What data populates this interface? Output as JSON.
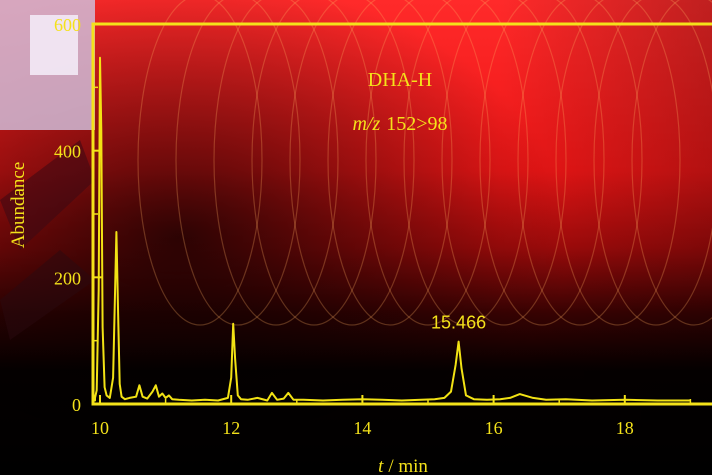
{
  "chart_data": {
    "type": "line",
    "title": "DHA-H",
    "subtitle": "m/z 152>98",
    "subtitle_prefix": "m/z",
    "subtitle_transition": "152>98",
    "xlabel_symbol": "t",
    "xlabel_unit": "/ min",
    "ylabel": "Abundance",
    "xlim": [
      9.0,
      19.0
    ],
    "ylim": [
      0,
      600
    ],
    "xticks": [
      10,
      12,
      14,
      16,
      18
    ],
    "yticks": [
      0,
      200,
      400,
      600
    ],
    "grid": false,
    "annotations": [
      {
        "text": "15.466",
        "x": 15.466,
        "y": 97
      }
    ],
    "series": [
      {
        "x": [
          9.0,
          9.1,
          9.2,
          9.3,
          9.4,
          9.5,
          9.6,
          9.7,
          9.8,
          9.9,
          9.95,
          9.98,
          10.0,
          10.02,
          10.04,
          10.07,
          10.1,
          10.15,
          10.2,
          10.25,
          10.28,
          10.3,
          10.33,
          10.38,
          10.45,
          10.55,
          10.6,
          10.65,
          10.72,
          10.8,
          10.85,
          10.9,
          10.95,
          11.0,
          11.05,
          11.1,
          11.2,
          11.4,
          11.6,
          11.8,
          11.95,
          12.0,
          12.03,
          12.06,
          12.1,
          12.15,
          12.25,
          12.4,
          12.55,
          12.62,
          12.7,
          12.8,
          12.87,
          12.95,
          13.1,
          13.4,
          13.7,
          14.0,
          14.3,
          14.6,
          14.9,
          15.1,
          15.25,
          15.35,
          15.42,
          15.466,
          15.51,
          15.58,
          15.7,
          15.9,
          16.1,
          16.25,
          16.4,
          16.6,
          16.8,
          17.1,
          17.5,
          18.0,
          18.5,
          19.0
        ],
        "y": [
          5,
          9,
          4,
          7,
          5,
          6,
          4,
          7,
          5,
          8,
          20,
          180,
          545,
          430,
          120,
          25,
          12,
          8,
          40,
          270,
          120,
          30,
          10,
          6,
          8,
          10,
          28,
          10,
          7,
          18,
          28,
          10,
          15,
          8,
          12,
          6,
          5,
          4,
          5,
          4,
          8,
          40,
          125,
          70,
          12,
          6,
          5,
          8,
          4,
          16,
          5,
          7,
          16,
          5,
          5,
          4,
          5,
          6,
          5,
          4,
          5,
          6,
          8,
          18,
          60,
          97,
          55,
          12,
          6,
          5,
          6,
          8,
          14,
          8,
          5,
          6,
          4,
          5,
          4,
          4
        ]
      }
    ]
  }
}
